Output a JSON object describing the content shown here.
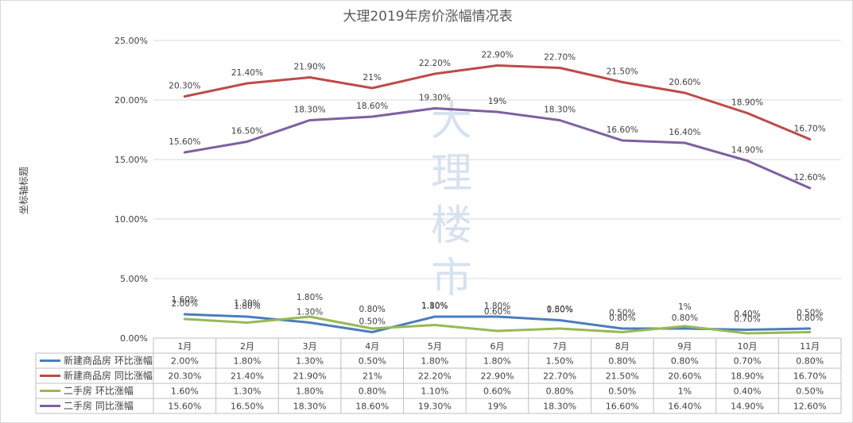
{
  "chart_data": {
    "type": "line",
    "title": "大理2019年房价涨幅情况表",
    "ylabel": "坐标轴标题",
    "xlabel": "",
    "watermark": "大理楼市",
    "categories": [
      "1月",
      "2月",
      "3月",
      "4月",
      "5月",
      "6月",
      "7月",
      "8月",
      "9月",
      "10月",
      "11月"
    ],
    "ylim": [
      0,
      25
    ],
    "yticks": [
      "0.00%",
      "5.00%",
      "10.00%",
      "15.00%",
      "20.00%",
      "25.00%"
    ],
    "grid": true,
    "legend": "data-table-bottom",
    "series": [
      {
        "name": "新建商品房 环比涨幅",
        "color": "#4a7ebb",
        "values": [
          2.0,
          1.8,
          1.3,
          0.5,
          1.8,
          1.8,
          1.5,
          0.8,
          0.8,
          0.7,
          0.8
        ],
        "labels": [
          "2.00%",
          "1.80%",
          "1.30%",
          "0.50%",
          "1.80%",
          "1.80%",
          "1.50%",
          "0.80%",
          "0.80%",
          "0.70%",
          "0.80%"
        ]
      },
      {
        "name": "新建商品房 同比涨幅",
        "color": "#be4b48",
        "values": [
          20.3,
          21.4,
          21.9,
          21,
          22.2,
          22.9,
          22.7,
          21.5,
          20.6,
          18.9,
          16.7
        ],
        "labels": [
          "20.30%",
          "21.40%",
          "21.90%",
          "21%",
          "22.20%",
          "22.90%",
          "22.70%",
          "21.50%",
          "20.60%",
          "18.90%",
          "16.70%"
        ]
      },
      {
        "name": "二手房 环比涨幅",
        "color": "#98b954",
        "values": [
          1.6,
          1.3,
          1.8,
          0.8,
          1.1,
          0.6,
          0.8,
          0.5,
          1,
          0.4,
          0.5
        ],
        "labels": [
          "1.60%",
          "1.30%",
          "1.80%",
          "0.80%",
          "1.10%",
          "0.60%",
          "0.80%",
          "0.50%",
          "1%",
          "0.40%",
          "0.50%"
        ]
      },
      {
        "name": "二手房 同比涨幅",
        "color": "#7d60a0",
        "values": [
          15.6,
          16.5,
          18.3,
          18.6,
          19.3,
          19,
          18.3,
          16.6,
          16.4,
          14.9,
          12.6
        ],
        "labels": [
          "15.60%",
          "16.50%",
          "18.30%",
          "18.60%",
          "19.30%",
          "19%",
          "18.30%",
          "16.60%",
          "16.40%",
          "14.90%",
          "12.60%"
        ]
      }
    ]
  }
}
